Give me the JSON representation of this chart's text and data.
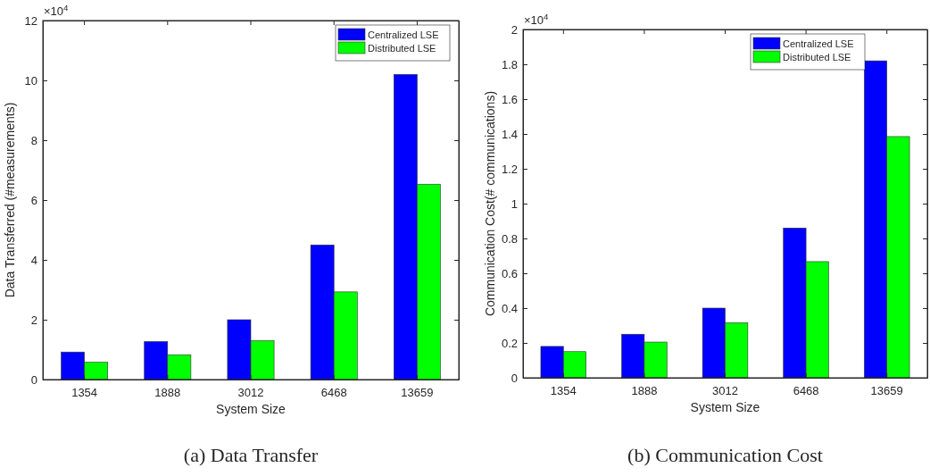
{
  "chart_data": [
    {
      "type": "bar",
      "title": "(a) Data Transfer",
      "xlabel": "System Size",
      "ylabel": "Data Transferred (#measurements)",
      "categories": [
        "1354",
        "1888",
        "3012",
        "6468",
        "13659"
      ],
      "series": [
        {
          "name": "Centralized LSE",
          "color": "#0000ff",
          "values": [
            0.92,
            1.27,
            2.0,
            4.5,
            10.2
          ]
        },
        {
          "name": "Distributed LSE",
          "color": "#00ff00",
          "values": [
            0.58,
            0.83,
            1.3,
            2.93,
            6.53
          ]
        }
      ],
      "ylim": [
        0,
        12
      ],
      "yticks": [
        0,
        2,
        4,
        6,
        8,
        10,
        12
      ],
      "legend": "top right",
      "grid": false,
      "annotations": [
        "×10$^{4}$"
      ]
    },
    {
      "type": "bar",
      "title": "(b) Communication Cost",
      "xlabel": "System Size",
      "ylabel": "Communication Cost(# communications)",
      "categories": [
        "1354",
        "1888",
        "3012",
        "6468",
        "13659"
      ],
      "series": [
        {
          "name": "Centralized LSE",
          "color": "#0000ff",
          "values": [
            0.18,
            0.25,
            0.4,
            0.86,
            1.82
          ]
        },
        {
          "name": "Distributed LSE",
          "color": "#00ff00",
          "values": [
            0.15,
            0.205,
            0.316,
            0.667,
            1.385
          ]
        }
      ],
      "ylim": [
        0,
        2
      ],
      "yticks": [
        0,
        0.2,
        0.4,
        0.6,
        0.8,
        1,
        1.2,
        1.4,
        1.6,
        1.8,
        2
      ],
      "legend": "top right",
      "grid": false,
      "annotations": [
        "×10$^{4}$"
      ]
    }
  ]
}
